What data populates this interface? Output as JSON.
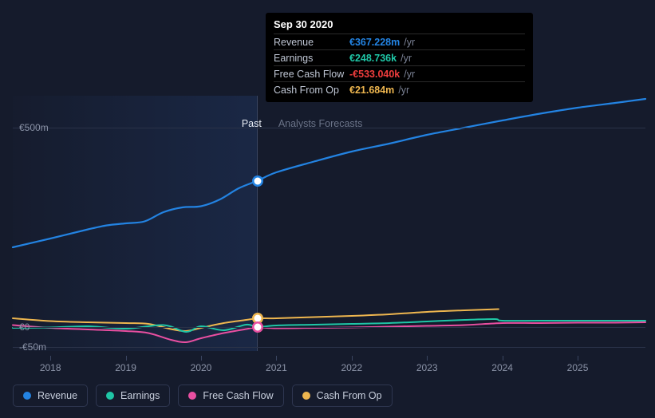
{
  "chart": {
    "type": "line",
    "background_color": "#151b2c",
    "grid_color": "#2a3248",
    "text_color": "#8b93a7",
    "y_axis": {
      "ticks": [
        {
          "label": "€500m",
          "value": 500
        },
        {
          "label": "€0",
          "value": 0
        },
        {
          "label": "-€50m",
          "value": -50
        }
      ],
      "min": -60,
      "max": 580
    },
    "x_axis": {
      "years": [
        "2018",
        "2019",
        "2020",
        "2021",
        "2022",
        "2023",
        "2024",
        "2025"
      ],
      "min": 2017.5,
      "max": 2025.9
    },
    "divider": {
      "x": 2020.75,
      "past_label": "Past",
      "forecast_label": "Analysts Forecasts"
    },
    "series": {
      "revenue": {
        "label": "Revenue",
        "color": "#2383e2",
        "width": 2.2,
        "points": [
          [
            2017.5,
            200
          ],
          [
            2018.0,
            222
          ],
          [
            2018.5,
            245
          ],
          [
            2018.75,
            255
          ],
          [
            2019.0,
            260
          ],
          [
            2019.25,
            265
          ],
          [
            2019.5,
            288
          ],
          [
            2019.75,
            300
          ],
          [
            2020.0,
            303
          ],
          [
            2020.25,
            320
          ],
          [
            2020.5,
            348
          ],
          [
            2020.75,
            367
          ],
          [
            2021.0,
            388
          ],
          [
            2021.5,
            415
          ],
          [
            2022.0,
            440
          ],
          [
            2022.5,
            460
          ],
          [
            2023.0,
            482
          ],
          [
            2023.5,
            500
          ],
          [
            2024.0,
            518
          ],
          [
            2024.5,
            535
          ],
          [
            2025.0,
            550
          ],
          [
            2025.5,
            562
          ],
          [
            2025.9,
            572
          ]
        ]
      },
      "earnings": {
        "label": "Earnings",
        "color": "#1fc6a6",
        "width": 2,
        "points": [
          [
            2017.5,
            -2
          ],
          [
            2018.0,
            -1
          ],
          [
            2018.5,
            2
          ],
          [
            2019.0,
            -4
          ],
          [
            2019.5,
            5
          ],
          [
            2019.8,
            -12
          ],
          [
            2020.0,
            2
          ],
          [
            2020.3,
            -8
          ],
          [
            2020.6,
            6
          ],
          [
            2020.75,
            0.25
          ],
          [
            2021.0,
            4
          ],
          [
            2021.5,
            6
          ],
          [
            2022.0,
            8
          ],
          [
            2022.5,
            10
          ],
          [
            2023.0,
            14
          ],
          [
            2023.5,
            18
          ],
          [
            2023.9,
            20
          ],
          [
            2024.0,
            16
          ],
          [
            2024.5,
            16
          ],
          [
            2025.0,
            16
          ],
          [
            2025.5,
            16
          ],
          [
            2025.9,
            16
          ]
        ]
      },
      "fcf": {
        "label": "Free Cash Flow",
        "color": "#e94fa1",
        "width": 2,
        "points": [
          [
            2017.5,
            5
          ],
          [
            2018.0,
            -2
          ],
          [
            2018.5,
            -6
          ],
          [
            2019.0,
            -10
          ],
          [
            2019.3,
            -15
          ],
          [
            2019.6,
            -32
          ],
          [
            2019.8,
            -38
          ],
          [
            2020.0,
            -28
          ],
          [
            2020.3,
            -15
          ],
          [
            2020.6,
            -5
          ],
          [
            2020.75,
            -0.53
          ],
          [
            2021.0,
            -3
          ],
          [
            2021.5,
            -2
          ],
          [
            2022.0,
            -1
          ],
          [
            2022.5,
            1
          ],
          [
            2023.0,
            3
          ],
          [
            2023.5,
            5
          ],
          [
            2024.0,
            10
          ],
          [
            2024.5,
            10
          ],
          [
            2025.0,
            11
          ],
          [
            2025.5,
            11
          ],
          [
            2025.9,
            12
          ]
        ]
      },
      "cfo": {
        "label": "Cash From Op",
        "color": "#eeb64f",
        "width": 2,
        "points": [
          [
            2017.5,
            22
          ],
          [
            2018.0,
            15
          ],
          [
            2018.5,
            12
          ],
          [
            2019.0,
            10
          ],
          [
            2019.3,
            8
          ],
          [
            2019.6,
            -5
          ],
          [
            2019.8,
            -10
          ],
          [
            2020.0,
            -2
          ],
          [
            2020.3,
            10
          ],
          [
            2020.6,
            18
          ],
          [
            2020.75,
            21.7
          ],
          [
            2021.0,
            22
          ],
          [
            2021.5,
            25
          ],
          [
            2022.0,
            28
          ],
          [
            2022.5,
            32
          ],
          [
            2023.0,
            38
          ],
          [
            2023.5,
            42
          ],
          [
            2023.95,
            45
          ]
        ]
      }
    },
    "tooltip": {
      "title": "Sep 30 2020",
      "rows": [
        {
          "label": "Revenue",
          "value": "€367.228m",
          "color": "#2383e2",
          "suffix": "/yr"
        },
        {
          "label": "Earnings",
          "value": "€248.736k",
          "color": "#1fc6a6",
          "suffix": "/yr"
        },
        {
          "label": "Free Cash Flow",
          "value": "-€533.040k",
          "color": "#f03d3d",
          "suffix": "/yr"
        },
        {
          "label": "Cash From Op",
          "value": "€21.684m",
          "color": "#eeb64f",
          "suffix": "/yr"
        }
      ]
    },
    "markers": [
      {
        "series": "revenue",
        "x": 2020.75,
        "y": 367,
        "ring": "#2383e2"
      },
      {
        "series": "cfo",
        "x": 2020.75,
        "y": 21.7,
        "ring": "#eeb64f"
      },
      {
        "series": "fcf",
        "x": 2020.75,
        "y": -0.53,
        "ring": "#e94fa1"
      }
    ]
  }
}
